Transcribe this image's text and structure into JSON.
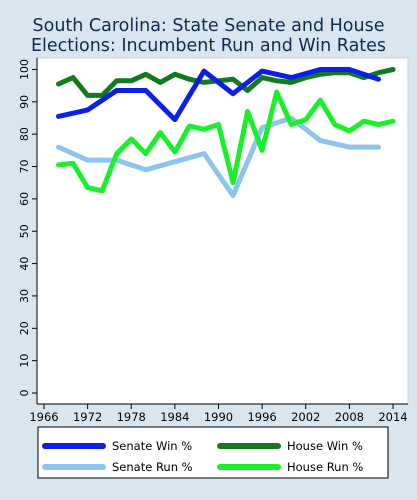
{
  "chart_data": {
    "type": "line",
    "title_line1": "South Carolina: State Senate and House",
    "title_line2": "Elections: Incumbent Run and Win Rates",
    "xlabel": "",
    "ylabel": "",
    "xlim": [
      1964,
      2016
    ],
    "ylim": [
      0,
      102
    ],
    "xticks": [
      1966,
      1972,
      1978,
      1984,
      1990,
      1996,
      2002,
      2008,
      2014
    ],
    "yticks": [
      0,
      10,
      20,
      30,
      40,
      50,
      60,
      70,
      80,
      90,
      100
    ],
    "grid": false,
    "legend_position": "bottom",
    "series": [
      {
        "name": "Senate Win %",
        "color": "#0a1fe8",
        "x": [
          1968,
          1972,
          1976,
          1980,
          1984,
          1988,
          1992,
          1996,
          2000,
          2004,
          2008,
          2012
        ],
        "y": [
          85.5,
          87.5,
          93.5,
          93.5,
          84.5,
          99.5,
          92.5,
          99.5,
          97.5,
          100,
          100,
          97
        ]
      },
      {
        "name": "House Win %",
        "color": "#137a1c",
        "x": [
          1968,
          1970,
          1972,
          1974,
          1976,
          1978,
          1980,
          1982,
          1984,
          1986,
          1988,
          1990,
          1992,
          1994,
          1996,
          1998,
          2000,
          2002,
          2004,
          2006,
          2008,
          2010,
          2012,
          2014
        ],
        "y": [
          95.5,
          97.5,
          92,
          92,
          96.5,
          96.5,
          98.5,
          96,
          98.5,
          97,
          96,
          96.5,
          97,
          93.5,
          97.5,
          96.5,
          96,
          97.5,
          98.5,
          99,
          99,
          97.5,
          99,
          100
        ]
      },
      {
        "name": "Senate Run %",
        "color": "#8cc4ec",
        "x": [
          1968,
          1972,
          1976,
          1980,
          1984,
          1988,
          1992,
          1996,
          2000,
          2004,
          2008,
          2012
        ],
        "y": [
          76,
          72,
          72,
          69,
          71.5,
          74,
          61,
          82,
          85,
          78,
          76,
          76
        ]
      },
      {
        "name": "House Run %",
        "color": "#19f02a",
        "x": [
          1968,
          1970,
          1972,
          1974,
          1976,
          1978,
          1980,
          1982,
          1984,
          1986,
          1988,
          1990,
          1992,
          1994,
          1996,
          1998,
          2000,
          2002,
          2004,
          2006,
          2008,
          2010,
          2012,
          2014
        ],
        "y": [
          70.5,
          71,
          63.5,
          62.5,
          74,
          78.5,
          74,
          80.5,
          74.5,
          82.5,
          81.5,
          83,
          65,
          87,
          75,
          93,
          83,
          84.5,
          90.5,
          83,
          81,
          84,
          83,
          84
        ]
      }
    ]
  }
}
